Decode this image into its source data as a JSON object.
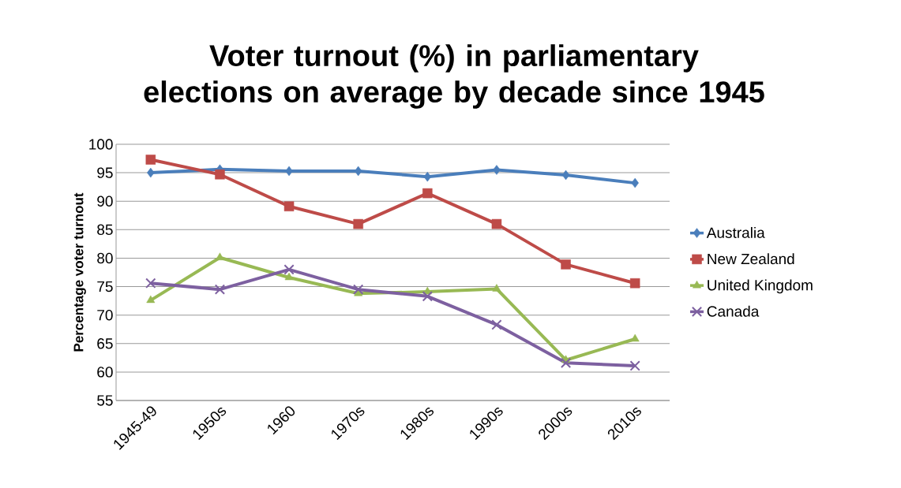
{
  "chart_data": {
    "type": "line",
    "title": "Voter turnout (%) in parliamentary elections on average by decade since 1945",
    "ylabel": "Percentage voter turnout",
    "categories": [
      "1945-49",
      "1950s",
      "1960",
      "1970s",
      "1980s",
      "1990s",
      "2000s",
      "2010s"
    ],
    "series": [
      {
        "name": "Australia",
        "color": "#4a7ebb",
        "marker": "diamond",
        "values": [
          95,
          95.6,
          95.3,
          95.3,
          94.3,
          95.5,
          94.6,
          93.2
        ]
      },
      {
        "name": "New Zealand",
        "color": "#be4b48",
        "marker": "square",
        "values": [
          97.3,
          94.7,
          89.1,
          86,
          91.4,
          86,
          78.9,
          75.6
        ]
      },
      {
        "name": "United Kingdom",
        "color": "#98b954",
        "marker": "triangle",
        "values": [
          72.6,
          80.1,
          76.6,
          73.8,
          74.1,
          74.6,
          62.1,
          65.8
        ]
      },
      {
        "name": "Canada",
        "color": "#7d60a0",
        "marker": "cross",
        "values": [
          75.6,
          74.5,
          78,
          74.5,
          73.3,
          68.3,
          61.6,
          61.1
        ]
      }
    ],
    "ylim": [
      55,
      100
    ],
    "yticks": [
      55,
      60,
      65,
      70,
      75,
      80,
      85,
      90,
      95,
      100
    ],
    "grid": "y",
    "legend": "right",
    "line_style": "solid"
  }
}
